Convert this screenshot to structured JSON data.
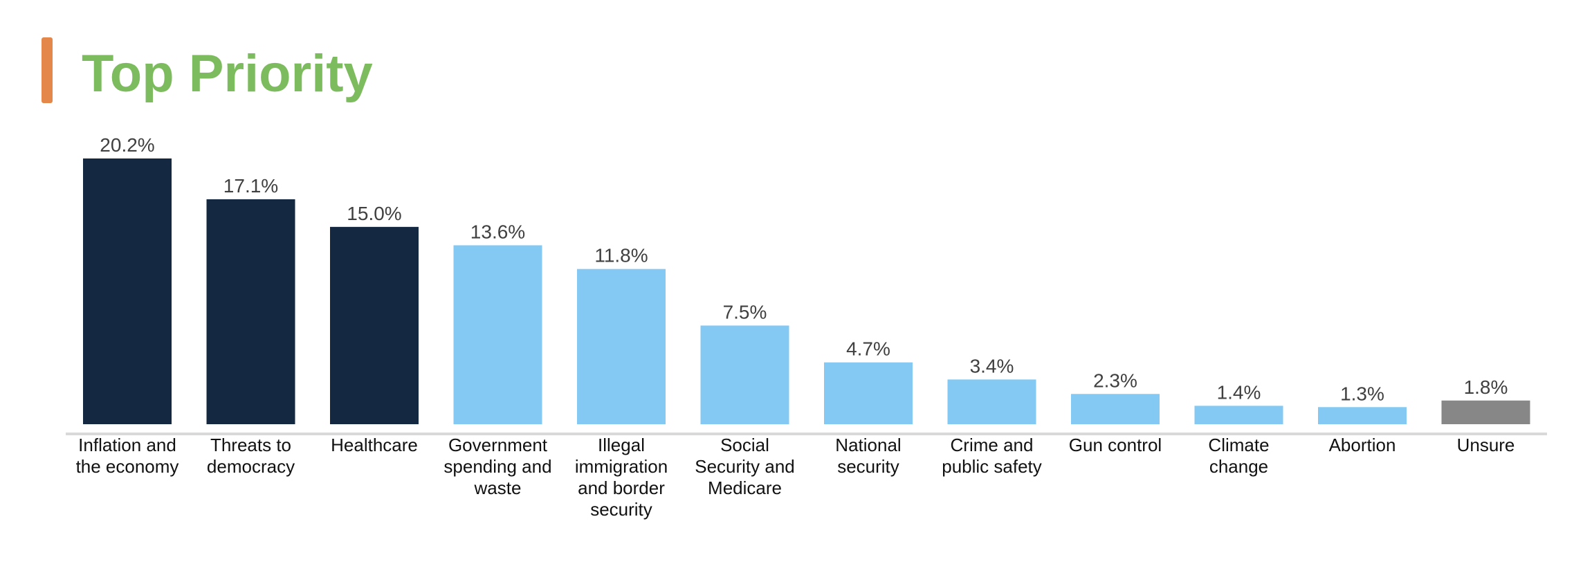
{
  "chart_data": {
    "type": "bar",
    "title": "Top Priority",
    "categories": [
      "Inflation and the economy",
      "Threats to democracy",
      "Healthcare",
      "Government spending and waste",
      "Illegal immigration and border security",
      "Social Security and Medicare",
      "National security",
      "Crime and public safety",
      "Gun control",
      "Climate change",
      "Abortion",
      "Unsure"
    ],
    "values": [
      20.2,
      17.1,
      15.0,
      13.6,
      11.8,
      7.5,
      4.7,
      3.4,
      2.3,
      1.4,
      1.3,
      1.8
    ],
    "value_labels": [
      "20.2%",
      "17.1%",
      "15.0%",
      "13.6%",
      "11.8%",
      "7.5%",
      "4.7%",
      "3.4%",
      "2.3%",
      "1.4%",
      "1.3%",
      "1.8%"
    ],
    "colors": [
      "#142842",
      "#142842",
      "#142842",
      "#83c9f4",
      "#83c9f4",
      "#83c9f4",
      "#83c9f4",
      "#83c9f4",
      "#83c9f4",
      "#83c9f4",
      "#83c9f4",
      "#878787"
    ]
  }
}
